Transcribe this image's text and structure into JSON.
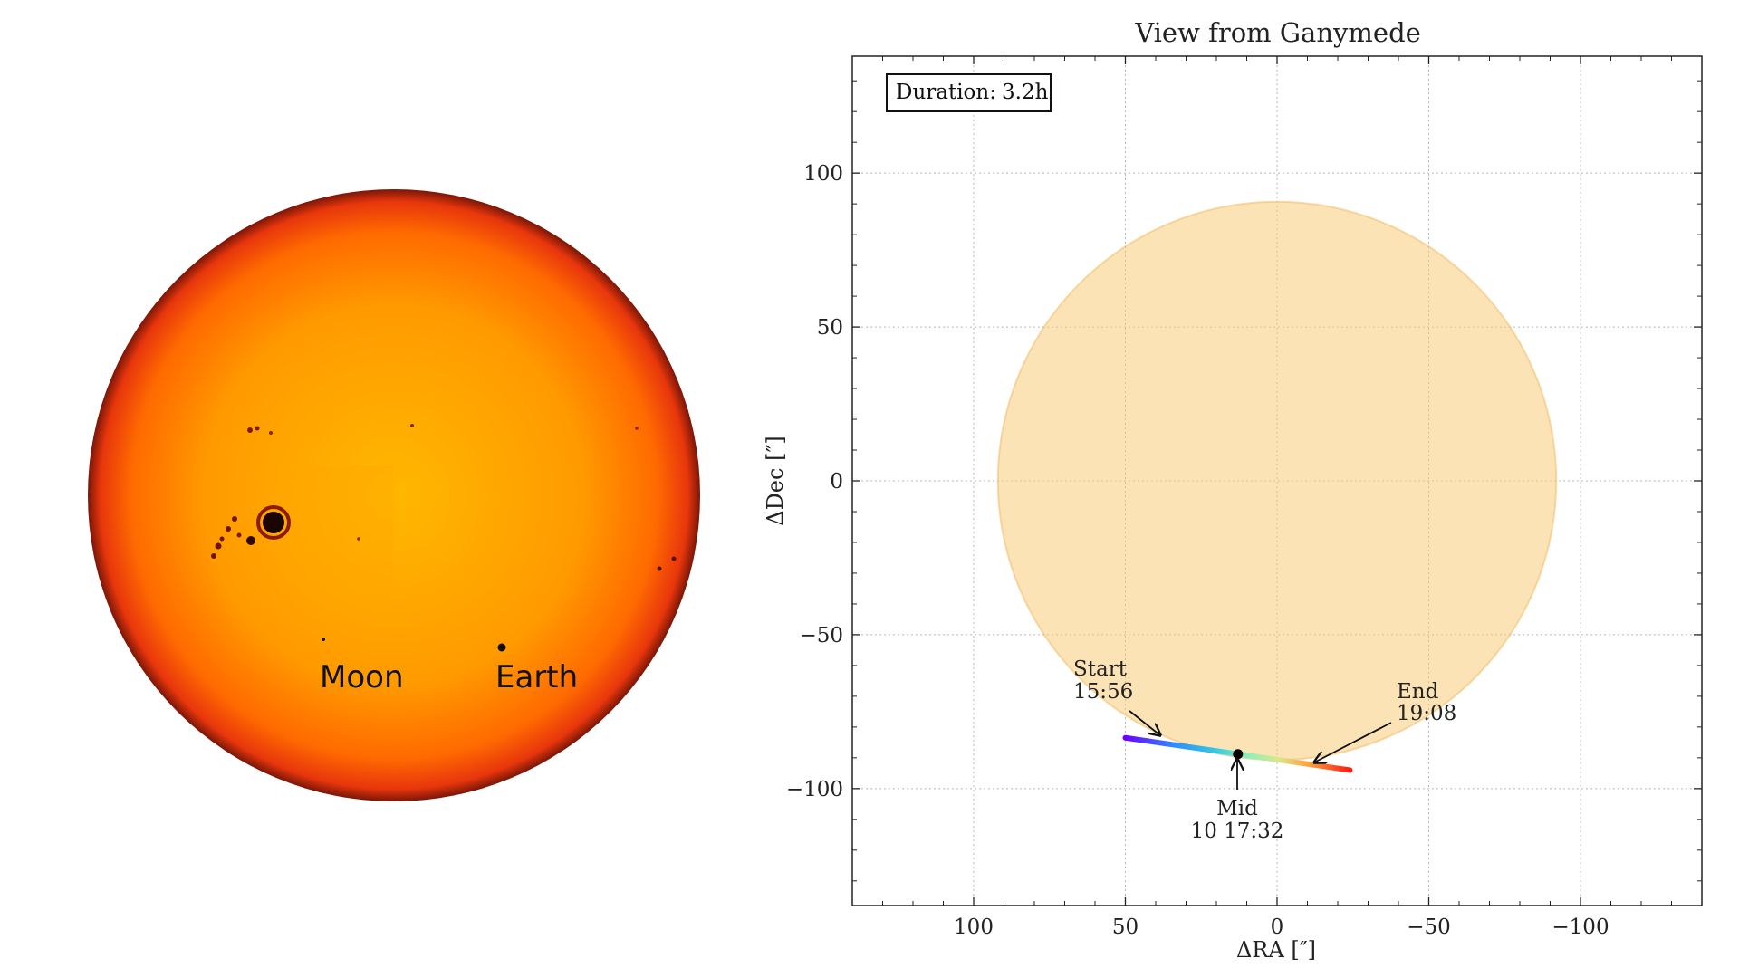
{
  "sun_image": {
    "labels": [
      {
        "text": "Moon"
      },
      {
        "text": "Earth"
      }
    ],
    "colors": {
      "center": "#ffb800",
      "mid": "#ff9200",
      "limb": "#e8360c",
      "edge": "#7a1608"
    }
  },
  "chart_data": {
    "type": "line",
    "title": "View from Ganymede",
    "xlabel": "ΔRA [″]",
    "ylabel": "ΔDec [″]",
    "xlim": [
      140,
      -140
    ],
    "ylim": [
      -138,
      138
    ],
    "x_ticks": [
      100,
      50,
      0,
      -50,
      -100
    ],
    "x_tick_labels": [
      "100",
      "50",
      "0",
      "−50",
      "−100"
    ],
    "y_ticks": [
      100,
      50,
      0,
      -50,
      -100
    ],
    "y_tick_labels": [
      "100",
      "50",
      "0",
      "−50",
      "−100"
    ],
    "grid": true,
    "solar_disk": {
      "center": [
        0,
        0
      ],
      "radius_arcsec": 92,
      "fill": "#f9c76b",
      "opacity": 0.5
    },
    "transit_track": {
      "x": [
        50,
        12.9,
        -24
      ],
      "y": [
        -83.5,
        -88.8,
        -94
      ],
      "colormap": [
        "#6a00ff",
        "#2f8cff",
        "#33c9e0",
        "#8ff0b8",
        "#d9e88a",
        "#ffa040",
        "#ff1a10"
      ]
    },
    "mid_point": {
      "x": 12.9,
      "y": -88.8
    },
    "duration_box": {
      "label": "Duration:",
      "value": "3.2h"
    },
    "annotations": [
      {
        "text": "Start",
        "time": "15:56",
        "point": [
          38.5,
          -83
        ]
      },
      {
        "text": "Mid",
        "time": "10 17:32",
        "point": [
          12.9,
          -91
        ]
      },
      {
        "text": "End",
        "time": "19:08",
        "point": [
          -12.2,
          -91
        ]
      }
    ]
  }
}
